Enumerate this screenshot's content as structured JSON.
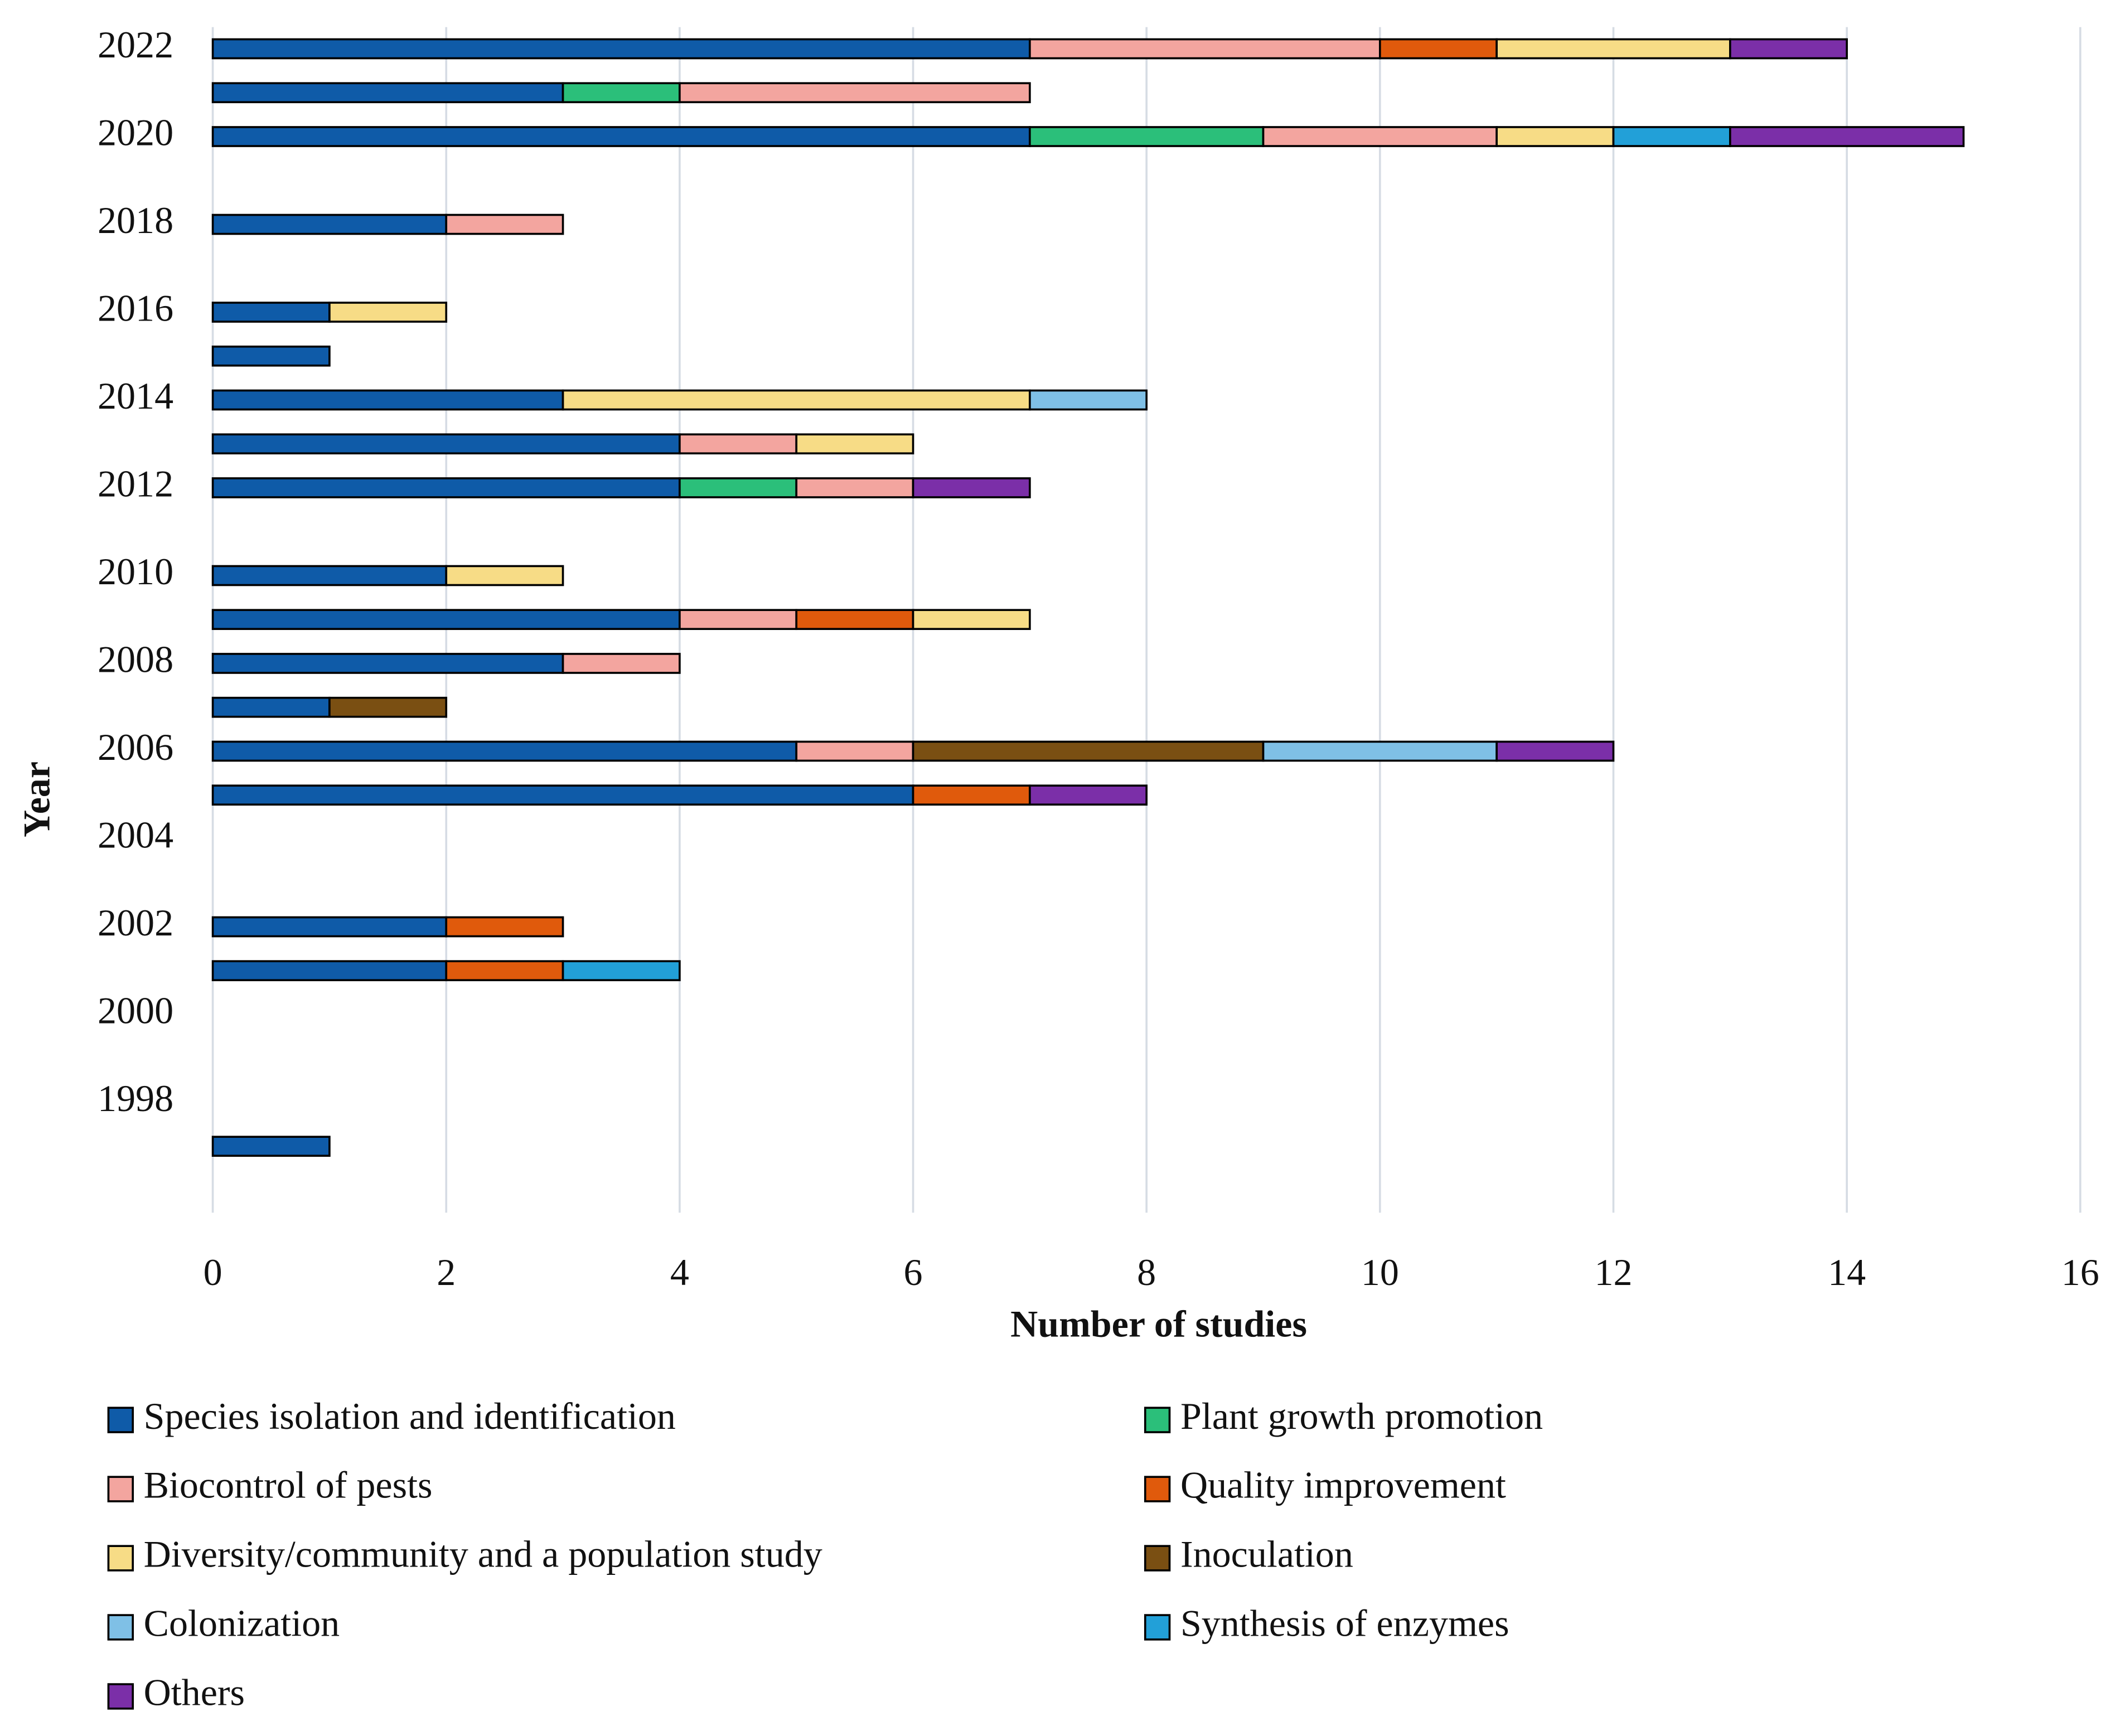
{
  "chart_data": {
    "type": "stacked-barh",
    "x_label": "Number of studies",
    "y_label": "Year",
    "categories": [
      null,
      "1998",
      null,
      "2000",
      null,
      "2002",
      null,
      "2004",
      null,
      "2006",
      null,
      "2008",
      null,
      "2010",
      null,
      "2012",
      null,
      "2014",
      null,
      "2016",
      null,
      "2018",
      null,
      "2020",
      null,
      "2022"
    ],
    "series": [
      {
        "name": "Species isolation and identification",
        "color": "#0f5ba8",
        "values": [
          1,
          0,
          0,
          0,
          2,
          2,
          0,
          0,
          6,
          5,
          1,
          3,
          4,
          2,
          0,
          4,
          4,
          3,
          1,
          1,
          0,
          2,
          0,
          7,
          3,
          7
        ]
      },
      {
        "name": "Plant growth promotion",
        "color": "#2bbf7a",
        "values": [
          0,
          0,
          0,
          0,
          0,
          0,
          0,
          0,
          0,
          0,
          0,
          0,
          0,
          0,
          0,
          1,
          0,
          0,
          0,
          0,
          0,
          0,
          0,
          2,
          1,
          0
        ]
      },
      {
        "name": "Biocontrol of pests",
        "color": "#f3a59f",
        "values": [
          0,
          0,
          0,
          0,
          0,
          0,
          0,
          0,
          0,
          1,
          0,
          1,
          1,
          0,
          0,
          1,
          1,
          0,
          0,
          0,
          0,
          1,
          0,
          2,
          3,
          3
        ]
      },
      {
        "name": "Quality improvement",
        "color": "#e05a0c",
        "values": [
          0,
          0,
          0,
          0,
          1,
          1,
          0,
          0,
          1,
          0,
          0,
          0,
          1,
          0,
          0,
          0,
          0,
          0,
          0,
          0,
          0,
          0,
          0,
          0,
          0,
          1
        ]
      },
      {
        "name": "Diversity/community and a population study",
        "color": "#f7dc86",
        "values": [
          0,
          0,
          0,
          0,
          0,
          0,
          0,
          0,
          0,
          0,
          0,
          0,
          1,
          1,
          0,
          0,
          1,
          4,
          0,
          1,
          0,
          0,
          0,
          1,
          0,
          2
        ]
      },
      {
        "name": "Inoculation",
        "color": "#7a4f12",
        "values": [
          0,
          0,
          0,
          0,
          0,
          0,
          0,
          0,
          0,
          3,
          1,
          0,
          0,
          0,
          0,
          0,
          0,
          0,
          0,
          0,
          0,
          0,
          0,
          0,
          0,
          0
        ]
      },
      {
        "name": "Colonization",
        "color": "#7fc0e6",
        "values": [
          0,
          0,
          0,
          0,
          0,
          0,
          0,
          0,
          0,
          2,
          0,
          0,
          0,
          0,
          0,
          0,
          0,
          1,
          0,
          0,
          0,
          0,
          0,
          0,
          0,
          0
        ]
      },
      {
        "name": "Synthesis of enzymes",
        "color": "#22a0d8",
        "values": [
          0,
          0,
          0,
          0,
          1,
          0,
          0,
          0,
          0,
          0,
          0,
          0,
          0,
          0,
          0,
          0,
          0,
          0,
          0,
          0,
          0,
          0,
          0,
          1,
          0,
          0
        ]
      },
      {
        "name": "Others",
        "color": "#7b2fa8",
        "values": [
          0,
          0,
          0,
          0,
          0,
          0,
          0,
          0,
          1,
          1,
          0,
          0,
          0,
          0,
          0,
          1,
          0,
          0,
          0,
          0,
          0,
          0,
          0,
          2,
          0,
          1
        ]
      }
    ],
    "xlim": [
      0,
      16
    ],
    "xticks": [
      0,
      2,
      4,
      6,
      8,
      10,
      12,
      14,
      16
    ],
    "grid": true,
    "legend": "bottom"
  }
}
